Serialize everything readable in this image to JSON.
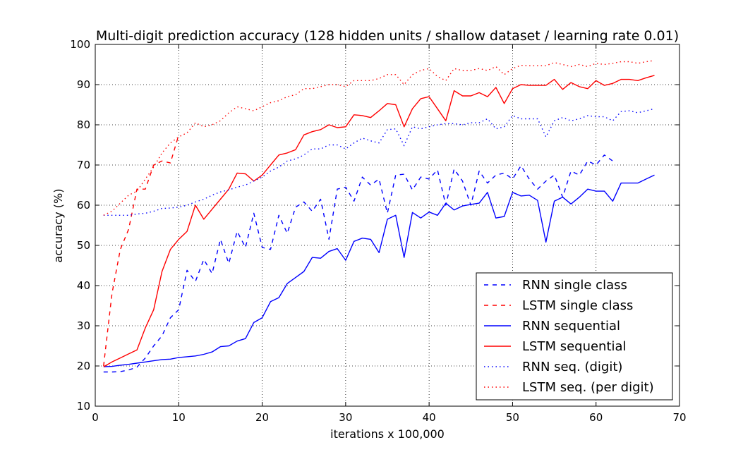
{
  "chart_data": {
    "type": "line",
    "title": "Multi-digit prediction accuracy (128 hidden units / shallow dataset / learning rate 0.01)",
    "xlabel": "iterations x 100,000",
    "ylabel": "accuracy (%)",
    "xlim": [
      0,
      70
    ],
    "ylim": [
      10,
      100
    ],
    "xticks": [
      0,
      10,
      20,
      30,
      40,
      50,
      60,
      70
    ],
    "yticks": [
      10,
      20,
      30,
      40,
      50,
      60,
      70,
      80,
      90,
      100
    ],
    "grid": true,
    "legend_position": "lower-right",
    "series": [
      {
        "name": "RNN single class",
        "color": "#0000ff",
        "style": "dashed",
        "x": [
          1,
          2,
          3,
          4,
          5,
          6,
          7,
          8,
          9,
          10,
          11,
          12,
          13,
          14,
          15,
          16,
          17,
          18,
          19,
          20,
          21,
          22,
          23,
          24,
          25,
          26,
          27,
          28,
          29,
          30,
          31,
          32,
          33,
          34,
          35,
          36,
          37,
          38,
          39,
          40,
          41,
          42,
          43,
          44,
          45,
          46,
          47,
          48,
          49,
          50,
          51,
          52,
          53,
          54,
          55,
          56,
          57,
          58,
          59,
          60,
          61,
          62
        ],
        "y": [
          18.5,
          18.5,
          18.6,
          19.0,
          19.7,
          22.0,
          25.0,
          27.5,
          32.0,
          34.0,
          43.8,
          41.0,
          46.5,
          43.0,
          51.5,
          45.5,
          53.5,
          49.5,
          58.0,
          49.5,
          49.0,
          57.5,
          53.0,
          59.5,
          60.8,
          58.5,
          61.5,
          51.5,
          64.0,
          64.5,
          61.0,
          67.0,
          65.0,
          66.5,
          58.0,
          67.5,
          67.7,
          63.8,
          67.0,
          66.5,
          68.8,
          60.0,
          69.0,
          66.0,
          60.0,
          68.5,
          65.5,
          67.5,
          68.0,
          66.5,
          69.8,
          66.5,
          64.0,
          66.0,
          67.5,
          62.0,
          68.5,
          67.5,
          71.0,
          70.0,
          72.5,
          71.0
        ]
      },
      {
        "name": "LSTM single class",
        "color": "#ff0000",
        "style": "dashed",
        "x": [
          1,
          2,
          3,
          4,
          5,
          6,
          7,
          8,
          9,
          10
        ],
        "y": [
          20.0,
          38.0,
          49.0,
          54.0,
          64.0,
          64.0,
          70.0,
          71.0,
          70.5,
          77.5
        ]
      },
      {
        "name": "RNN sequential",
        "color": "#0000ff",
        "style": "solid",
        "x": [
          1,
          2,
          3,
          4,
          5,
          6,
          7,
          8,
          9,
          10,
          11,
          12,
          13,
          14,
          15,
          16,
          17,
          18,
          19,
          20,
          21,
          22,
          23,
          24,
          25,
          26,
          27,
          28,
          29,
          30,
          31,
          32,
          33,
          34,
          35,
          36,
          37,
          38,
          39,
          40,
          41,
          42,
          43,
          44,
          45,
          46,
          47,
          48,
          49,
          50,
          51,
          52,
          53,
          54,
          55,
          56,
          57,
          58,
          59,
          60,
          61,
          62,
          63,
          64,
          65,
          66,
          67
        ],
        "y": [
          19.8,
          19.9,
          20.2,
          20.4,
          20.7,
          21.0,
          21.3,
          21.6,
          21.7,
          22.1,
          22.3,
          22.5,
          22.9,
          23.5,
          24.8,
          25.0,
          26.2,
          26.8,
          30.8,
          32.0,
          36.0,
          37.0,
          40.5,
          42.0,
          43.5,
          47.0,
          46.8,
          48.5,
          49.2,
          46.3,
          51.0,
          51.8,
          51.5,
          48.2,
          56.5,
          57.5,
          47.0,
          58.2,
          56.8,
          58.3,
          57.5,
          60.5,
          58.8,
          59.8,
          60.2,
          60.5,
          63.2,
          56.8,
          57.2,
          63.2,
          62.3,
          62.5,
          61.2,
          50.8,
          61.0,
          62.0,
          60.3,
          62.0,
          64.0,
          63.5,
          63.5,
          61.0,
          65.5,
          65.5,
          65.5,
          66.5,
          67.5
        ]
      },
      {
        "name": "LSTM sequential",
        "color": "#ff0000",
        "style": "solid",
        "x": [
          1,
          2,
          3,
          4,
          5,
          6,
          7,
          8,
          9,
          10,
          11,
          12,
          13,
          14,
          15,
          16,
          17,
          18,
          19,
          20,
          21,
          22,
          23,
          24,
          25,
          26,
          27,
          28,
          29,
          30,
          31,
          32,
          33,
          34,
          35,
          36,
          37,
          38,
          39,
          40,
          41,
          42,
          43,
          44,
          45,
          46,
          47,
          48,
          49,
          50,
          51,
          52,
          53,
          54,
          55,
          56,
          57,
          58,
          59,
          60,
          61,
          62,
          63,
          64,
          65,
          66,
          67
        ],
        "y": [
          19.8,
          21.0,
          22.0,
          23.0,
          24.0,
          29.5,
          34.0,
          43.5,
          49.0,
          51.5,
          53.5,
          60.0,
          56.5,
          59.0,
          61.5,
          64.0,
          68.0,
          67.8,
          66.0,
          67.5,
          70.0,
          72.5,
          73.0,
          73.8,
          77.5,
          78.3,
          78.8,
          80.0,
          79.3,
          79.5,
          82.5,
          82.3,
          81.8,
          83.5,
          85.3,
          85.0,
          79.5,
          84.0,
          86.5,
          87.0,
          84.0,
          81.0,
          88.5,
          87.2,
          87.2,
          88.0,
          87.0,
          89.3,
          85.3,
          89.0,
          90.0,
          89.8,
          89.8,
          89.8,
          91.3,
          88.8,
          90.5,
          89.5,
          89.0,
          91.0,
          89.8,
          90.3,
          91.3,
          91.3,
          91.0,
          91.7,
          92.3
        ]
      },
      {
        "name": "RNN seq. (digit)",
        "color": "#0000ff",
        "style": "dotted",
        "x": [
          1,
          2,
          3,
          4,
          5,
          6,
          7,
          8,
          9,
          10,
          11,
          12,
          13,
          14,
          15,
          16,
          17,
          18,
          19,
          20,
          21,
          22,
          23,
          24,
          25,
          26,
          27,
          28,
          29,
          30,
          31,
          32,
          33,
          34,
          35,
          36,
          37,
          38,
          39,
          40,
          41,
          42,
          43,
          44,
          45,
          46,
          47,
          48,
          49,
          50,
          51,
          52,
          53,
          54,
          55,
          56,
          57,
          58,
          59,
          60,
          61,
          62,
          63,
          64,
          65,
          66,
          67
        ],
        "y": [
          57.5,
          57.5,
          57.5,
          57.5,
          57.8,
          58.0,
          58.5,
          59.2,
          59.3,
          59.5,
          60.0,
          60.8,
          61.5,
          62.5,
          63.3,
          63.8,
          64.5,
          65.0,
          66.0,
          67.0,
          68.5,
          69.5,
          71.0,
          71.5,
          72.5,
          74.0,
          74.0,
          75.0,
          75.0,
          74.0,
          75.5,
          76.7,
          76.0,
          75.5,
          78.8,
          79.0,
          74.8,
          79.5,
          79.0,
          79.5,
          80.0,
          80.3,
          80.3,
          80.0,
          80.5,
          80.5,
          81.5,
          79.0,
          79.5,
          82.3,
          81.5,
          81.5,
          81.5,
          77.0,
          81.0,
          81.8,
          81.0,
          81.5,
          82.3,
          82.0,
          82.0,
          81.0,
          83.3,
          83.5,
          83.0,
          83.5,
          84.0
        ]
      },
      {
        "name": "LSTM seq. (per digit)",
        "color": "#ff0000",
        "style": "dotted",
        "x": [
          1,
          2,
          3,
          4,
          5,
          6,
          7,
          8,
          9,
          10,
          11,
          12,
          13,
          14,
          15,
          16,
          17,
          18,
          19,
          20,
          21,
          22,
          23,
          24,
          25,
          26,
          27,
          28,
          29,
          30,
          31,
          32,
          33,
          34,
          35,
          36,
          37,
          38,
          39,
          40,
          41,
          42,
          43,
          44,
          45,
          46,
          47,
          48,
          49,
          50,
          51,
          52,
          53,
          54,
          55,
          56,
          57,
          58,
          59,
          60,
          61,
          62,
          63,
          64,
          65,
          66,
          67
        ],
        "y": [
          57.5,
          58.5,
          60.5,
          62.5,
          63.5,
          66.5,
          69.5,
          73.0,
          75.5,
          77.0,
          78.0,
          80.5,
          79.5,
          80.0,
          81.0,
          83.0,
          84.5,
          84.0,
          83.5,
          84.5,
          85.5,
          86.0,
          87.0,
          87.5,
          89.0,
          89.0,
          89.5,
          90.0,
          90.0,
          89.5,
          91.0,
          91.0,
          91.0,
          91.5,
          92.5,
          92.5,
          90.0,
          92.5,
          93.5,
          94.0,
          92.0,
          91.0,
          94.0,
          93.5,
          93.5,
          94.0,
          93.5,
          94.5,
          92.5,
          94.0,
          94.8,
          94.7,
          94.7,
          94.7,
          95.5,
          95.0,
          94.5,
          95.0,
          94.5,
          95.3,
          95.0,
          95.3,
          95.7,
          95.7,
          95.3,
          95.7,
          96.0
        ]
      }
    ]
  }
}
